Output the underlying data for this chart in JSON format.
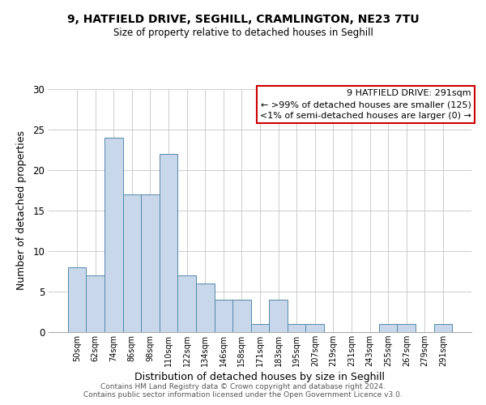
{
  "title1": "9, HATFIELD DRIVE, SEGHILL, CRAMLINGTON, NE23 7TU",
  "title2": "Size of property relative to detached houses in Seghill",
  "xlabel": "Distribution of detached houses by size in Seghill",
  "ylabel": "Number of detached properties",
  "categories": [
    "50sqm",
    "62sqm",
    "74sqm",
    "86sqm",
    "98sqm",
    "110sqm",
    "122sqm",
    "134sqm",
    "146sqm",
    "158sqm",
    "171sqm",
    "183sqm",
    "195sqm",
    "207sqm",
    "219sqm",
    "231sqm",
    "243sqm",
    "255sqm",
    "267sqm",
    "279sqm",
    "291sqm"
  ],
  "values": [
    8,
    7,
    24,
    17,
    17,
    22,
    7,
    6,
    4,
    4,
    1,
    4,
    1,
    1,
    0,
    0,
    0,
    1,
    1,
    0,
    1
  ],
  "bar_color": "#c8d8ea",
  "bar_edge_color": "#5588aa",
  "legend_box_color": "#cc0000",
  "legend_title": "9 HATFIELD DRIVE: 291sqm",
  "legend_line1": "← >99% of detached houses are smaller (125)",
  "legend_line2": "<1% of semi-detached houses are larger (0) →",
  "ylim": [
    0,
    30
  ],
  "yticks": [
    0,
    5,
    10,
    15,
    20,
    25,
    30
  ],
  "footnote1": "Contains HM Land Registry data © Crown copyright and database right 2024.",
  "footnote2": "Contains public sector information licensed under the Open Government Licence v3.0.",
  "bg_color": "#ffffff",
  "grid_color": "#cccccc"
}
